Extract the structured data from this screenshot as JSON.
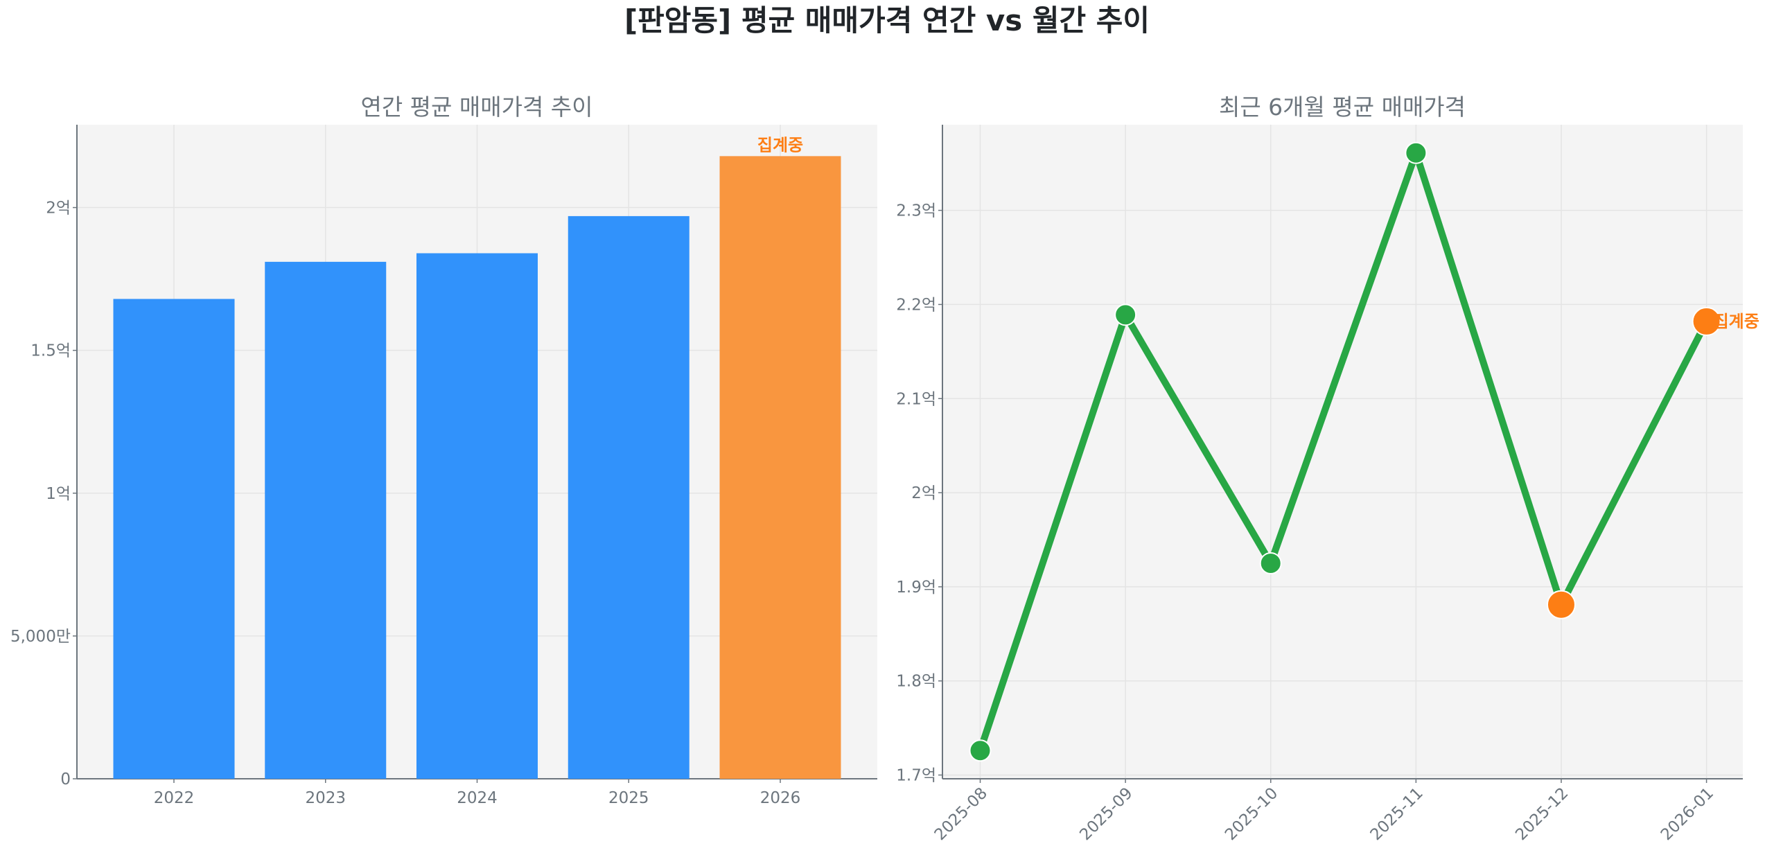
{
  "figure_title": "[판암동] 평균 매매가격 연간 vs 월간 추이",
  "chart_data": [
    {
      "type": "bar",
      "title": "연간 평균 매매가격 추이",
      "xlabel": "",
      "ylabel": "",
      "unit": "억",
      "categories": [
        "2022",
        "2023",
        "2024",
        "2025",
        "2026"
      ],
      "values": [
        1.68,
        1.81,
        1.84,
        1.97,
        2.18
      ],
      "bar_colors": [
        "#3192fb",
        "#3192fb",
        "#3192fb",
        "#3192fb",
        "#f9963f"
      ],
      "annotations": [
        {
          "category": "2026",
          "text": "집계중"
        }
      ],
      "ylim": [
        0,
        2.29
      ],
      "yticks": [
        0,
        0.5,
        1,
        1.5,
        2
      ],
      "ytick_labels": [
        "0",
        "5,000만",
        "1억",
        "1.5억",
        "2억"
      ],
      "grid": true
    },
    {
      "type": "line",
      "title": "최근 6개월 평균 매매가격",
      "xlabel": "",
      "ylabel": "",
      "unit": "억",
      "categories": [
        "2025-08",
        "2025-09",
        "2025-10",
        "2025-11",
        "2025-12",
        "2026-01"
      ],
      "values": [
        1.726,
        2.189,
        1.925,
        2.361,
        1.881,
        2.182
      ],
      "line_color": "#28a745",
      "highlight_color": "#fd7e14",
      "highlighted_points": [
        "2025-12",
        "2026-01"
      ],
      "annotations": [
        {
          "category": "2026-01",
          "text": "집계중"
        }
      ],
      "ylim": [
        1.696,
        2.391
      ],
      "yticks": [
        1.7,
        1.8,
        1.9,
        2.0,
        2.1,
        2.2,
        2.3
      ],
      "ytick_labels": [
        "1.7억",
        "1.8억",
        "1.9억",
        "2억",
        "2.1억",
        "2.2억",
        "2.3억"
      ],
      "grid": true
    }
  ]
}
